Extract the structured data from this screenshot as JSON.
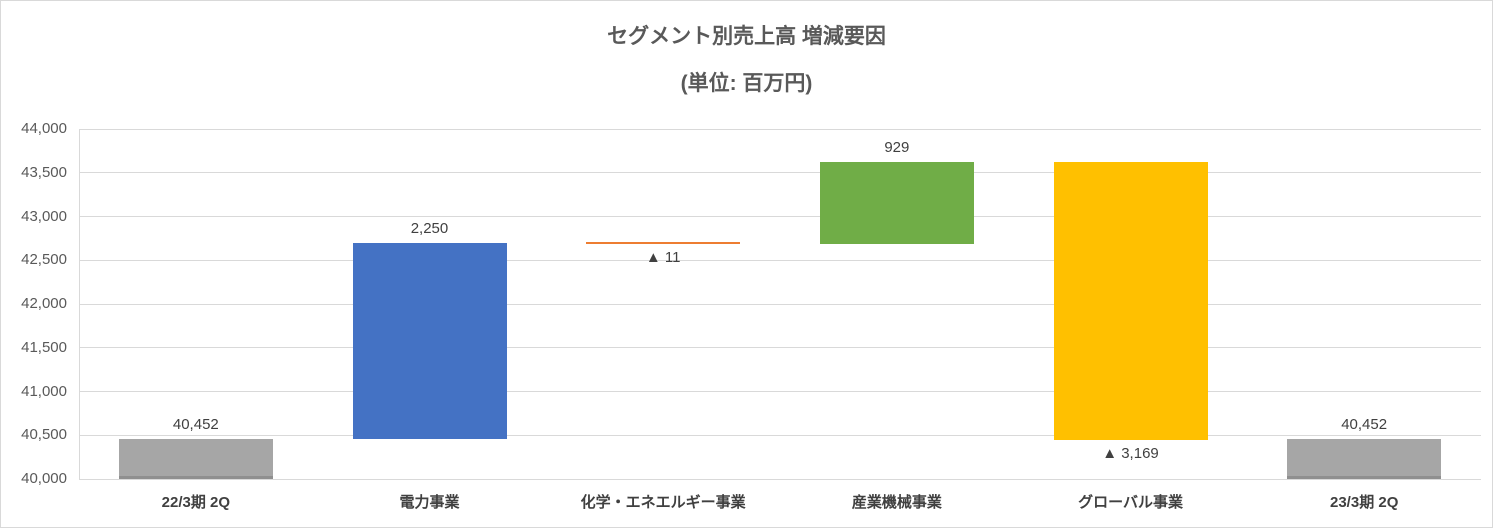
{
  "chart_data": {
    "type": "bar",
    "subtype": "waterfall",
    "title": "セグメント別売上高 増減要因",
    "subtitle": "(単位: 百万円)",
    "unit_label": "百万円",
    "categories": [
      "22/3期 2Q",
      "電力事業",
      "化学・エネエルギー事業",
      "産業機械事業",
      "グローバル事業",
      "23/3期 2Q"
    ],
    "bars": [
      {
        "category": "22/3期 2Q",
        "role": "total",
        "value": 40452,
        "label": "40,452",
        "label_position": "above",
        "visual_base": 40000,
        "visual_top": 40452,
        "color": "#a6a6a6"
      },
      {
        "category": "電力事業",
        "role": "increase",
        "value": 2250,
        "label": "2,250",
        "label_position": "above",
        "visual_base": 40452,
        "visual_top": 42702,
        "color": "#4472c4"
      },
      {
        "category": "化学・エネエルギー事業",
        "role": "decrease",
        "value": -11,
        "label": "▲ 11",
        "label_position": "below",
        "visual_base": 42691,
        "visual_top": 42702,
        "color": "#ed7d31"
      },
      {
        "category": "産業機械事業",
        "role": "increase",
        "value": 929,
        "label": "929",
        "label_position": "above",
        "visual_base": 42691,
        "visual_top": 43620,
        "color": "#70ad47"
      },
      {
        "category": "グローバル事業",
        "role": "decrease",
        "value": -3169,
        "label": "▲ 3,169",
        "label_position": "below",
        "visual_base": 40451,
        "visual_top": 43620,
        "color": "#ffc000"
      },
      {
        "category": "23/3期 2Q",
        "role": "total",
        "value": 40452,
        "label": "40,452",
        "label_position": "above",
        "visual_base": 40000,
        "visual_top": 40452,
        "color": "#a6a6a6"
      }
    ],
    "ylim": [
      40000,
      44000
    ],
    "ytick_step": 500,
    "yticks": [
      {
        "value": 40000,
        "label": "40,000"
      },
      {
        "value": 40500,
        "label": "40,500"
      },
      {
        "value": 41000,
        "label": "41,000"
      },
      {
        "value": 41500,
        "label": "41,500"
      },
      {
        "value": 42000,
        "label": "42,000"
      },
      {
        "value": 42500,
        "label": "42,500"
      },
      {
        "value": 43000,
        "label": "43,000"
      },
      {
        "value": 43500,
        "label": "43,500"
      },
      {
        "value": 44000,
        "label": "44,000"
      }
    ],
    "grid": "horizontal",
    "legend": "none",
    "colors": {
      "total_bar": "#a6a6a6",
      "power_bar": "#4472c4",
      "chemical_bar": "#ed7d31",
      "machinery_bar": "#70ad47",
      "global_bar": "#ffc000",
      "gridline": "#d9d9d9",
      "title_text": "#595959",
      "axis_text": "#595959",
      "label_text": "#404040"
    }
  }
}
